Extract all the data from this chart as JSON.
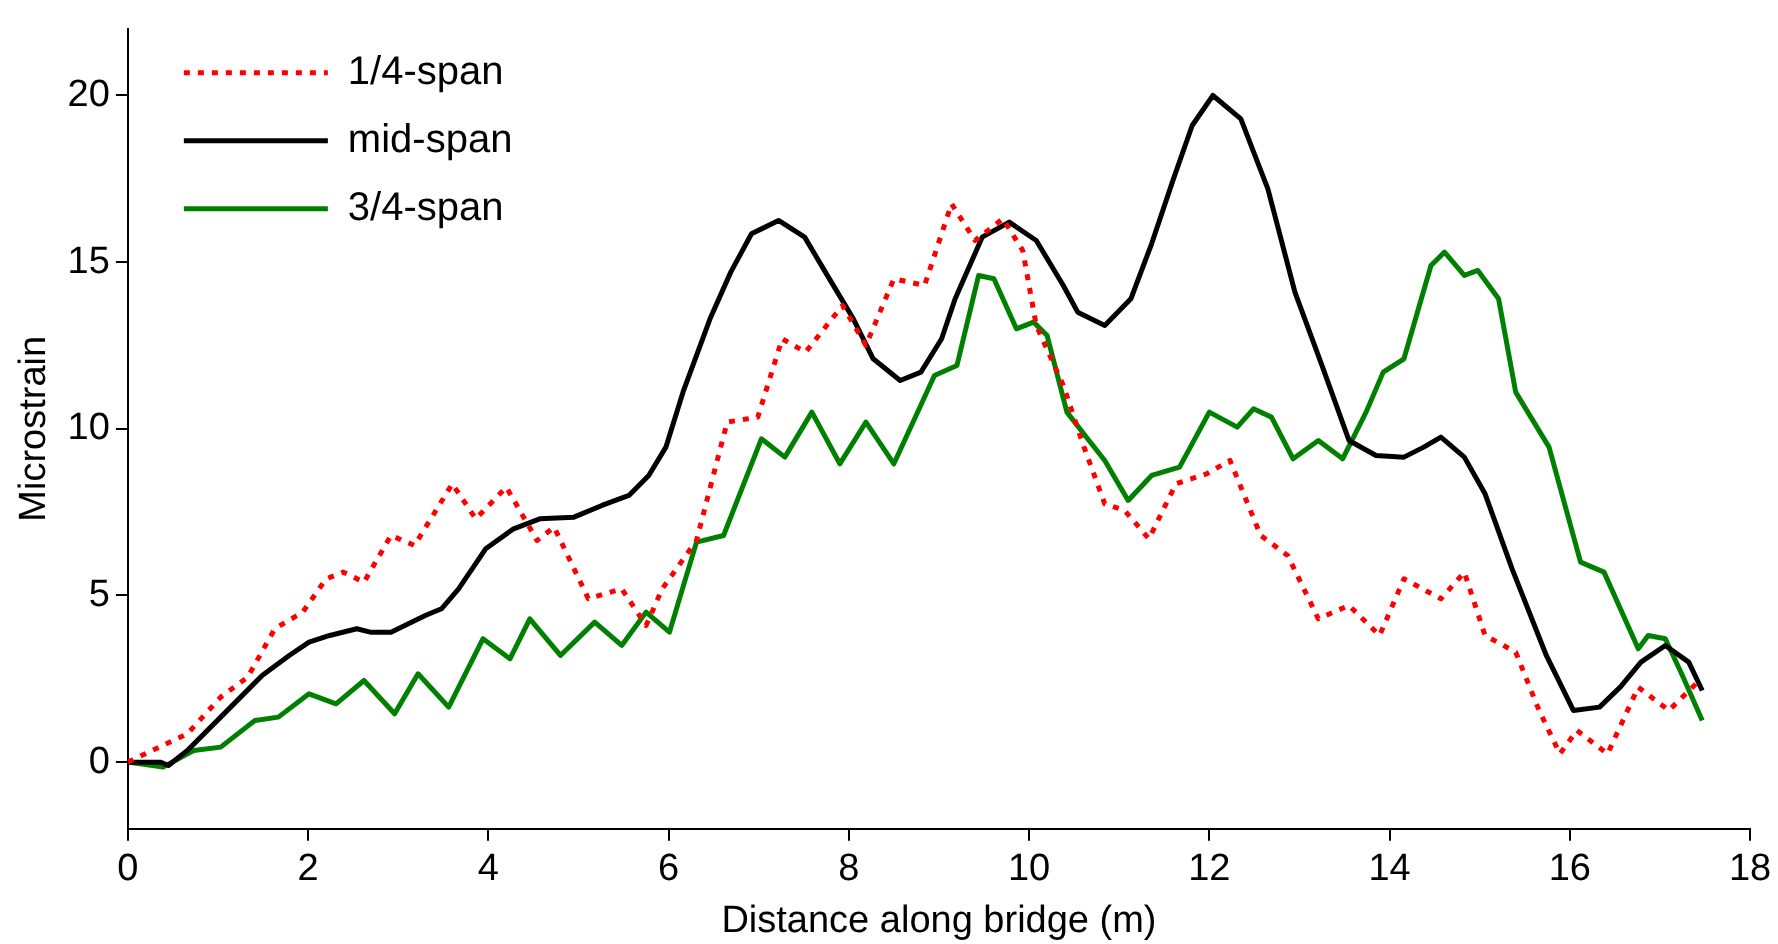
{
  "chart_data": {
    "type": "line",
    "xlabel": "Distance along bridge (m)",
    "ylabel": "Microstrain",
    "xlim": [
      0,
      18
    ],
    "xticks": [
      0,
      2,
      4,
      6,
      8,
      10,
      12,
      14,
      16,
      18
    ],
    "ylim": [
      -2,
      22
    ],
    "yticks": [
      0,
      5,
      10,
      15,
      20
    ],
    "grid": false,
    "legend": "top left",
    "marker": "none",
    "series": [
      {
        "name": "1/4-span",
        "color": "#ff0000",
        "line_style": "dotted",
        "x": [
          0,
          0.27,
          0.66,
          1.03,
          1.33,
          1.63,
          1.94,
          2.2,
          2.39,
          2.62,
          2.92,
          3.18,
          3.6,
          3.86,
          4.2,
          4.54,
          4.73,
          5.11,
          5.48,
          5.75,
          5.93,
          6.31,
          6.65,
          6.99,
          7.26,
          7.52,
          7.93,
          8.19,
          8.5,
          8.84,
          9.14,
          9.4,
          9.71,
          9.93,
          10.08,
          10.38,
          10.61,
          10.84,
          11.06,
          11.33,
          11.63,
          11.97,
          12.23,
          12.57,
          12.87,
          13.21,
          13.55,
          13.89,
          14.16,
          14.57,
          14.83,
          15.06,
          15.4,
          15.66,
          15.89,
          16.08,
          16.42,
          16.76,
          17.1,
          17.4
        ],
        "values": [
          0,
          0.35,
          0.85,
          1.95,
          2.55,
          4.0,
          4.5,
          5.5,
          5.7,
          5.4,
          6.8,
          6.5,
          8.35,
          7.3,
          8.25,
          6.65,
          7.05,
          4.9,
          5.2,
          4.1,
          5.2,
          6.65,
          10.2,
          10.35,
          12.7,
          12.3,
          13.7,
          12.5,
          14.5,
          14.3,
          16.75,
          15.65,
          16.3,
          15.35,
          13.1,
          11.3,
          9.45,
          7.75,
          7.55,
          6.7,
          8.35,
          8.65,
          9.05,
          6.8,
          6.2,
          4.3,
          4.7,
          3.8,
          5.5,
          4.9,
          5.7,
          3.8,
          3.3,
          1.55,
          0.25,
          0.95,
          0.25,
          2.25,
          1.55,
          2.35
        ]
      },
      {
        "name": "mid-span",
        "color": "#000000",
        "line_style": "solid",
        "x": [
          0,
          0.36,
          0.45,
          0.66,
          1.03,
          1.49,
          1.79,
          2.01,
          2.24,
          2.54,
          2.69,
          2.92,
          3.3,
          3.48,
          3.67,
          3.97,
          4.28,
          4.57,
          4.95,
          5.26,
          5.56,
          5.78,
          5.97,
          6.16,
          6.46,
          6.69,
          6.92,
          7.22,
          7.51,
          7.74,
          8.05,
          8.27,
          8.57,
          8.8,
          9.03,
          9.18,
          9.48,
          9.78,
          10.08,
          10.38,
          10.54,
          10.84,
          11.13,
          11.36,
          11.59,
          11.81,
          12.04,
          12.35,
          12.65,
          12.95,
          13.25,
          13.55,
          13.85,
          14.16,
          14.38,
          14.57,
          14.83,
          15.06,
          15.36,
          15.74,
          16.04,
          16.33,
          16.56,
          16.79,
          17.06,
          17.32,
          17.47
        ],
        "values": [
          0,
          0,
          -0.1,
          0.35,
          1.35,
          2.6,
          3.2,
          3.6,
          3.8,
          4.0,
          3.9,
          3.9,
          4.4,
          4.6,
          5.2,
          6.4,
          7.0,
          7.3,
          7.35,
          7.7,
          8.0,
          8.6,
          9.45,
          11.1,
          13.3,
          14.7,
          15.85,
          16.25,
          15.75,
          14.7,
          13.3,
          12.1,
          11.45,
          11.7,
          12.7,
          13.9,
          15.75,
          16.2,
          15.65,
          14.3,
          13.5,
          13.1,
          13.9,
          15.55,
          17.4,
          19.1,
          20.0,
          19.3,
          17.2,
          14.1,
          11.9,
          9.65,
          9.2,
          9.15,
          9.45,
          9.75,
          9.15,
          8.05,
          5.8,
          3.2,
          1.55,
          1.65,
          2.25,
          3.0,
          3.5,
          3.0,
          2.15
        ]
      },
      {
        "name": "3/4-span",
        "color": "#008000",
        "line_style": "solid",
        "x": [
          0,
          0.39,
          0.73,
          1.03,
          1.41,
          1.67,
          2.01,
          2.31,
          2.62,
          2.96,
          3.22,
          3.56,
          3.94,
          4.24,
          4.46,
          4.8,
          5.18,
          5.48,
          5.75,
          6.01,
          6.31,
          6.61,
          7.03,
          7.29,
          7.59,
          7.9,
          8.19,
          8.5,
          8.73,
          8.95,
          9.2,
          9.44,
          9.61,
          9.86,
          10.05,
          10.2,
          10.42,
          10.65,
          10.84,
          11.1,
          11.36,
          11.67,
          12.0,
          12.31,
          12.49,
          12.69,
          12.93,
          13.21,
          13.48,
          13.74,
          13.93,
          14.16,
          14.46,
          14.61,
          14.83,
          14.98,
          15.21,
          15.4,
          15.77,
          16.12,
          16.38,
          16.76,
          16.87,
          17.06,
          17.25,
          17.47
        ],
        "values": [
          0,
          -0.15,
          0.35,
          0.45,
          1.25,
          1.35,
          2.05,
          1.75,
          2.45,
          1.45,
          2.65,
          1.65,
          3.7,
          3.1,
          4.3,
          3.2,
          4.2,
          3.5,
          4.5,
          3.9,
          6.6,
          6.8,
          9.7,
          9.15,
          10.5,
          8.95,
          10.2,
          8.95,
          10.3,
          11.6,
          11.9,
          14.6,
          14.5,
          13.0,
          13.2,
          12.8,
          10.5,
          9.7,
          9.05,
          7.85,
          8.6,
          8.85,
          10.5,
          10.05,
          10.6,
          10.35,
          9.1,
          9.65,
          9.1,
          10.5,
          11.7,
          12.1,
          14.9,
          15.3,
          14.6,
          14.75,
          13.9,
          11.1,
          9.45,
          6.0,
          5.7,
          3.4,
          3.8,
          3.7,
          2.6,
          1.25
        ]
      }
    ]
  }
}
